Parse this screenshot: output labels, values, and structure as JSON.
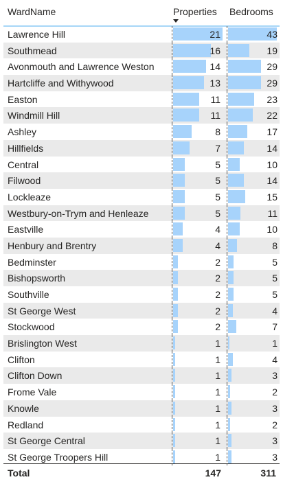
{
  "columns": {
    "ward": "WardName",
    "properties": "Properties",
    "bedrooms": "Bedrooms"
  },
  "rows": [
    {
      "ward": "Lawrence Hill",
      "properties": 21,
      "bedrooms": 43
    },
    {
      "ward": "Southmead",
      "properties": 16,
      "bedrooms": 19
    },
    {
      "ward": "Avonmouth and Lawrence Weston",
      "properties": 14,
      "bedrooms": 29
    },
    {
      "ward": "Hartcliffe and Withywood",
      "properties": 13,
      "bedrooms": 29
    },
    {
      "ward": "Easton",
      "properties": 11,
      "bedrooms": 23
    },
    {
      "ward": "Windmill Hill",
      "properties": 11,
      "bedrooms": 22
    },
    {
      "ward": "Ashley",
      "properties": 8,
      "bedrooms": 17
    },
    {
      "ward": "Hillfields",
      "properties": 7,
      "bedrooms": 14
    },
    {
      "ward": "Central",
      "properties": 5,
      "bedrooms": 10
    },
    {
      "ward": "Filwood",
      "properties": 5,
      "bedrooms": 14
    },
    {
      "ward": "Lockleaze",
      "properties": 5,
      "bedrooms": 15
    },
    {
      "ward": "Westbury-on-Trym and Henleaze",
      "properties": 5,
      "bedrooms": 11
    },
    {
      "ward": "Eastville",
      "properties": 4,
      "bedrooms": 10
    },
    {
      "ward": "Henbury and Brentry",
      "properties": 4,
      "bedrooms": 8
    },
    {
      "ward": "Bedminster",
      "properties": 2,
      "bedrooms": 5
    },
    {
      "ward": "Bishopsworth",
      "properties": 2,
      "bedrooms": 5
    },
    {
      "ward": "Southville",
      "properties": 2,
      "bedrooms": 5
    },
    {
      "ward": "St George West",
      "properties": 2,
      "bedrooms": 4
    },
    {
      "ward": "Stockwood",
      "properties": 2,
      "bedrooms": 7
    },
    {
      "ward": "Brislington West",
      "properties": 1,
      "bedrooms": 1
    },
    {
      "ward": "Clifton",
      "properties": 1,
      "bedrooms": 4
    },
    {
      "ward": "Clifton Down",
      "properties": 1,
      "bedrooms": 3
    },
    {
      "ward": "Frome Vale",
      "properties": 1,
      "bedrooms": 2
    },
    {
      "ward": "Knowle",
      "properties": 1,
      "bedrooms": 3
    },
    {
      "ward": "Redland",
      "properties": 1,
      "bedrooms": 2
    },
    {
      "ward": "St George Central",
      "properties": 1,
      "bedrooms": 3
    },
    {
      "ward": "St George Troopers Hill",
      "properties": 1,
      "bedrooms": 3
    }
  ],
  "total": {
    "label": "Total",
    "properties": "147",
    "bedrooms": "311"
  },
  "sort": {
    "column": "properties",
    "direction": "descending",
    "icon": "sort-descending-icon"
  },
  "colors": {
    "databar": "#a7d3fb",
    "alt_row": "#eaeaea",
    "header_rule": "#a6d6f7"
  }
}
